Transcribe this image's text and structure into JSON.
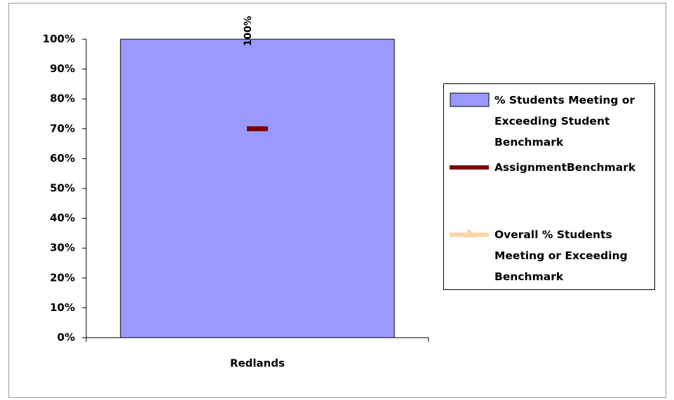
{
  "chart_data": {
    "type": "bar",
    "categories": [
      "Redlands"
    ],
    "series": [
      {
        "name": "% Students Meeting or Exceeding Student Benchmark",
        "type": "bar",
        "color": "#9999ff",
        "values": [
          100
        ],
        "value_labels": [
          "100%"
        ]
      },
      {
        "name": "AssignmentBenchmark",
        "type": "line",
        "color": "#800000",
        "values": [
          70
        ]
      },
      {
        "name": "Overall % Students Meeting or Exceeding Benchmark",
        "type": "line",
        "color": "#fcd5a8",
        "values": [
          null
        ]
      }
    ],
    "ylim": [
      0,
      100
    ],
    "yticks": [
      {
        "value": 0,
        "label": "0%"
      },
      {
        "value": 10,
        "label": "10%"
      },
      {
        "value": 20,
        "label": "20%"
      },
      {
        "value": 30,
        "label": "30%"
      },
      {
        "value": 40,
        "label": "40%"
      },
      {
        "value": 50,
        "label": "50%"
      },
      {
        "value": 60,
        "label": "60%"
      },
      {
        "value": 70,
        "label": "70%"
      },
      {
        "value": 80,
        "label": "80%"
      },
      {
        "value": 90,
        "label": "90%"
      },
      {
        "value": 100,
        "label": "100%"
      }
    ],
    "legend": "right"
  }
}
